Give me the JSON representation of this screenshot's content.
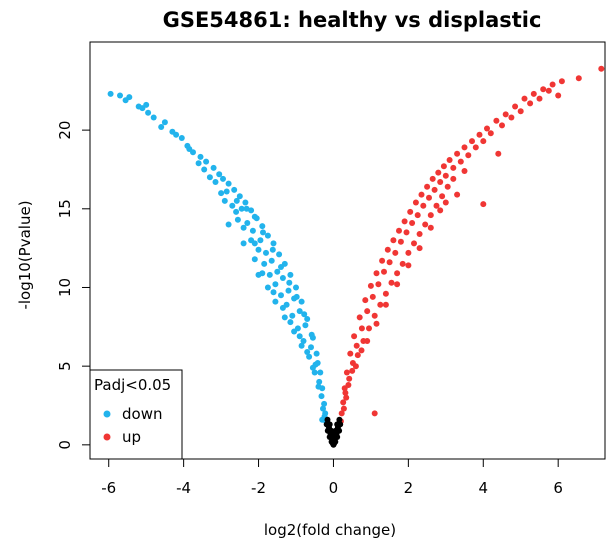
{
  "chart_data": {
    "type": "scatter",
    "title": "GSE54861: healthy vs displastic",
    "xlabel": "log2(fold change)",
    "ylabel": "-log10(Pvalue)",
    "xlim": [
      -6.5,
      7.25
    ],
    "ylim": [
      -0.9,
      25.6
    ],
    "x_ticks": [
      -6,
      -4,
      -2,
      0,
      2,
      4,
      6
    ],
    "y_ticks": [
      0,
      5,
      10,
      15,
      20
    ],
    "grid": false,
    "legend": {
      "title": "Padj<0.05",
      "position": "bottom-left",
      "entries": [
        {
          "label": "down",
          "color": "#22b3ec"
        },
        {
          "label": "up",
          "color": "#f03634"
        }
      ]
    },
    "series": [
      {
        "name": "down",
        "color": "#22b3ec",
        "points": [
          [
            -5.95,
            22.3
          ],
          [
            -5.7,
            22.2
          ],
          [
            -5.45,
            22.1
          ],
          [
            -5.2,
            21.5
          ],
          [
            -5.1,
            21.4
          ],
          [
            -4.95,
            21.1
          ],
          [
            -4.8,
            20.8
          ],
          [
            -4.5,
            20.5
          ],
          [
            -4.3,
            19.9
          ],
          [
            -4.2,
            19.7
          ],
          [
            -4.05,
            19.5
          ],
          [
            -3.9,
            19.0
          ],
          [
            -3.75,
            18.6
          ],
          [
            -3.55,
            18.3
          ],
          [
            -3.4,
            18.0
          ],
          [
            -3.2,
            17.6
          ],
          [
            -3.05,
            17.2
          ],
          [
            -2.95,
            16.9
          ],
          [
            -2.8,
            16.6
          ],
          [
            -2.65,
            16.2
          ],
          [
            -2.5,
            15.8
          ],
          [
            -2.35,
            15.4
          ],
          [
            -2.2,
            14.9
          ],
          [
            -2.05,
            14.4
          ],
          [
            -1.9,
            13.9
          ],
          [
            -1.75,
            13.3
          ],
          [
            -1.6,
            12.8
          ],
          [
            -1.45,
            12.1
          ],
          [
            -1.3,
            11.5
          ],
          [
            -1.15,
            10.8
          ],
          [
            -1.0,
            10.0
          ],
          [
            -0.85,
            9.1
          ],
          [
            -0.7,
            8.0
          ],
          [
            -0.55,
            6.8
          ],
          [
            -0.45,
            5.8
          ],
          [
            -0.35,
            4.6
          ],
          [
            -0.3,
            3.6
          ],
          [
            -0.25,
            2.6
          ],
          [
            -0.22,
            2.0
          ],
          [
            -0.2,
            1.5
          ],
          [
            -2.8,
            14.0
          ],
          [
            -2.6,
            14.8
          ],
          [
            -2.4,
            13.8
          ],
          [
            -2.2,
            13.0
          ],
          [
            -2.0,
            12.4
          ],
          [
            -1.85,
            11.5
          ],
          [
            -1.7,
            10.8
          ],
          [
            -1.55,
            10.2
          ],
          [
            -1.4,
            9.5
          ],
          [
            -1.25,
            8.9
          ],
          [
            -1.1,
            8.2
          ],
          [
            -0.95,
            7.4
          ],
          [
            -0.8,
            6.6
          ],
          [
            -0.65,
            5.6
          ],
          [
            -0.5,
            4.6
          ],
          [
            -0.4,
            3.7
          ],
          [
            -3.3,
            17.0
          ],
          [
            -3.0,
            16.0
          ],
          [
            -2.9,
            15.5
          ],
          [
            -2.7,
            15.2
          ],
          [
            -2.55,
            14.3
          ],
          [
            -2.45,
            15.0
          ],
          [
            -2.3,
            14.1
          ],
          [
            -2.15,
            13.6
          ],
          [
            -2.1,
            12.8
          ],
          [
            -1.95,
            13.0
          ],
          [
            -1.8,
            12.2
          ],
          [
            -1.65,
            11.7
          ],
          [
            -1.5,
            11.0
          ],
          [
            -1.35,
            10.6
          ],
          [
            -1.2,
            9.8
          ],
          [
            -1.05,
            9.3
          ],
          [
            -0.9,
            8.5
          ],
          [
            -0.75,
            7.6
          ],
          [
            -0.6,
            6.2
          ],
          [
            -0.48,
            5.1
          ],
          [
            -0.38,
            4.0
          ],
          [
            -0.32,
            3.1
          ],
          [
            -0.28,
            2.3
          ],
          [
            -0.24,
            1.8
          ],
          [
            -3.6,
            17.9
          ],
          [
            -3.45,
            17.5
          ],
          [
            -3.15,
            16.7
          ],
          [
            -2.85,
            16.1
          ],
          [
            -2.58,
            15.5
          ],
          [
            -2.32,
            15.0
          ],
          [
            -2.1,
            14.5
          ],
          [
            -1.88,
            13.5
          ],
          [
            -1.62,
            12.4
          ],
          [
            -1.4,
            11.3
          ],
          [
            -1.18,
            10.3
          ],
          [
            -0.98,
            9.4
          ],
          [
            -0.78,
            8.3
          ],
          [
            -0.58,
            7.0
          ],
          [
            -0.42,
            5.2
          ],
          [
            -2.4,
            12.8
          ],
          [
            -2.1,
            11.8
          ],
          [
            -1.9,
            10.9
          ],
          [
            -1.6,
            9.7
          ],
          [
            -1.35,
            8.7
          ],
          [
            -1.15,
            7.8
          ],
          [
            -0.9,
            6.9
          ],
          [
            -0.7,
            5.9
          ],
          [
            -0.55,
            4.9
          ],
          [
            -0.3,
            1.6
          ],
          [
            -3.85,
            18.8
          ],
          [
            -4.6,
            20.2
          ],
          [
            -5.0,
            21.6
          ],
          [
            -5.55,
            21.9
          ],
          [
            -2.0,
            10.8
          ],
          [
            -1.75,
            10.0
          ],
          [
            -1.55,
            9.1
          ],
          [
            -1.3,
            8.1
          ],
          [
            -1.05,
            7.2
          ],
          [
            -0.85,
            6.3
          ]
        ]
      },
      {
        "name": "up",
        "color": "#f03634",
        "points": [
          [
            0.2,
            1.5
          ],
          [
            0.22,
            2.0
          ],
          [
            0.26,
            2.7
          ],
          [
            0.3,
            3.6
          ],
          [
            0.36,
            4.6
          ],
          [
            0.45,
            5.8
          ],
          [
            0.55,
            6.9
          ],
          [
            0.7,
            8.1
          ],
          [
            0.85,
            9.2
          ],
          [
            1.0,
            10.1
          ],
          [
            1.15,
            10.9
          ],
          [
            1.3,
            11.7
          ],
          [
            1.45,
            12.4
          ],
          [
            1.6,
            13.0
          ],
          [
            1.75,
            13.6
          ],
          [
            1.9,
            14.2
          ],
          [
            2.05,
            14.8
          ],
          [
            2.2,
            15.4
          ],
          [
            2.35,
            15.9
          ],
          [
            2.5,
            16.4
          ],
          [
            2.65,
            16.9
          ],
          [
            2.8,
            17.3
          ],
          [
            2.95,
            17.7
          ],
          [
            3.1,
            18.1
          ],
          [
            3.3,
            18.5
          ],
          [
            3.5,
            18.9
          ],
          [
            3.7,
            19.3
          ],
          [
            3.9,
            19.7
          ],
          [
            4.1,
            20.1
          ],
          [
            4.35,
            20.6
          ],
          [
            4.6,
            21.0
          ],
          [
            4.85,
            21.5
          ],
          [
            5.1,
            22.0
          ],
          [
            5.35,
            22.3
          ],
          [
            5.6,
            22.6
          ],
          [
            5.85,
            22.9
          ],
          [
            6.1,
            23.1
          ],
          [
            6.55,
            23.3
          ],
          [
            7.15,
            23.9
          ],
          [
            6.0,
            22.2
          ],
          [
            0.4,
            3.8
          ],
          [
            0.5,
            4.7
          ],
          [
            0.65,
            5.7
          ],
          [
            0.8,
            6.6
          ],
          [
            0.95,
            7.4
          ],
          [
            1.1,
            8.2
          ],
          [
            1.25,
            8.9
          ],
          [
            1.4,
            9.6
          ],
          [
            1.55,
            10.3
          ],
          [
            1.7,
            10.9
          ],
          [
            1.85,
            11.5
          ],
          [
            2.0,
            12.2
          ],
          [
            2.15,
            12.8
          ],
          [
            2.3,
            13.4
          ],
          [
            2.45,
            14.0
          ],
          [
            2.6,
            14.6
          ],
          [
            2.75,
            15.2
          ],
          [
            2.9,
            15.8
          ],
          [
            3.05,
            16.4
          ],
          [
            3.2,
            16.9
          ],
          [
            0.34,
            3.0
          ],
          [
            0.42,
            4.2
          ],
          [
            0.52,
            5.2
          ],
          [
            0.62,
            6.3
          ],
          [
            0.76,
            7.4
          ],
          [
            0.9,
            8.5
          ],
          [
            1.05,
            9.4
          ],
          [
            1.2,
            10.2
          ],
          [
            1.35,
            11.0
          ],
          [
            1.5,
            11.6
          ],
          [
            1.65,
            12.2
          ],
          [
            1.8,
            12.9
          ],
          [
            1.95,
            13.5
          ],
          [
            2.1,
            14.1
          ],
          [
            2.25,
            14.6
          ],
          [
            2.4,
            15.2
          ],
          [
            2.55,
            15.7
          ],
          [
            2.7,
            16.2
          ],
          [
            2.85,
            16.7
          ],
          [
            3.0,
            17.1
          ],
          [
            3.2,
            17.6
          ],
          [
            3.4,
            18.0
          ],
          [
            3.6,
            18.4
          ],
          [
            3.8,
            18.9
          ],
          [
            4.0,
            19.3
          ],
          [
            4.2,
            19.8
          ],
          [
            4.5,
            20.3
          ],
          [
            4.75,
            20.8
          ],
          [
            5.0,
            21.2
          ],
          [
            5.25,
            21.7
          ],
          [
            5.5,
            22.0
          ],
          [
            5.75,
            22.5
          ],
          [
            1.1,
            2.0
          ],
          [
            4.0,
            15.3
          ],
          [
            3.3,
            15.9
          ],
          [
            2.0,
            11.4
          ],
          [
            1.7,
            10.2
          ],
          [
            1.4,
            8.9
          ],
          [
            1.15,
            7.7
          ],
          [
            0.9,
            6.6
          ],
          [
            2.6,
            13.8
          ],
          [
            2.3,
            12.5
          ],
          [
            3.5,
            17.4
          ],
          [
            3.0,
            15.4
          ],
          [
            4.4,
            18.5
          ],
          [
            0.28,
            2.3
          ],
          [
            0.32,
            3.3
          ],
          [
            0.6,
            5.0
          ],
          [
            0.75,
            6.0
          ],
          [
            2.85,
            14.9
          ]
        ]
      },
      {
        "name": "",
        "color": "#000000",
        "points": [
          [
            0.0,
            0.0
          ],
          [
            -0.05,
            0.2
          ],
          [
            0.05,
            0.2
          ],
          [
            -0.1,
            0.5
          ],
          [
            0.1,
            0.5
          ],
          [
            -0.15,
            0.9
          ],
          [
            0.15,
            0.9
          ],
          [
            -0.18,
            1.3
          ],
          [
            0.18,
            1.3
          ],
          [
            0.0,
            0.35
          ],
          [
            -0.08,
            0.7
          ],
          [
            0.08,
            0.7
          ],
          [
            -0.12,
            1.1
          ],
          [
            0.12,
            1.1
          ],
          [
            -0.02,
            0.1
          ],
          [
            0.02,
            0.1
          ],
          [
            -0.04,
            0.4
          ],
          [
            0.04,
            0.4
          ],
          [
            -0.16,
            1.6
          ],
          [
            0.16,
            1.6
          ],
          [
            0.0,
            0.6
          ],
          [
            -0.06,
            0.9
          ],
          [
            0.06,
            0.9
          ],
          [
            -0.1,
            1.3
          ],
          [
            0.1,
            1.3
          ]
        ]
      }
    ]
  }
}
